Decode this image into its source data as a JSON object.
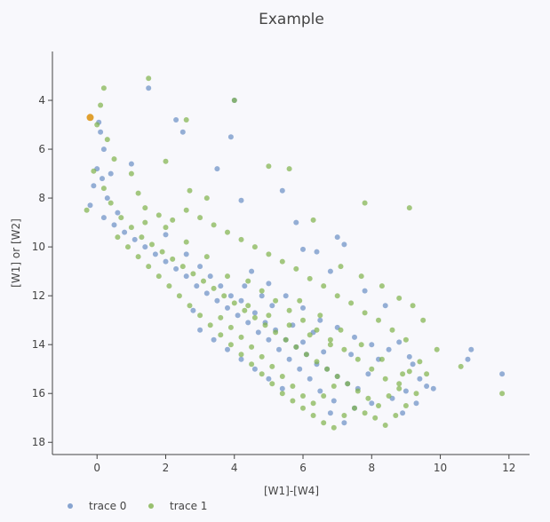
{
  "chart_data": {
    "type": "scatter",
    "title": "Example",
    "xlabel": "[W1]-[W4]",
    "ylabel": "[W1] or [W2]",
    "xlim": [
      -1.3,
      12.6
    ],
    "ylim": [
      18.5,
      2.0
    ],
    "y_reversed": true,
    "x_ticks": [
      0,
      2,
      4,
      6,
      8,
      10,
      12
    ],
    "y_ticks": [
      4,
      6,
      8,
      10,
      12,
      14,
      16,
      18
    ],
    "grid": false,
    "legend_position": "bottom-left",
    "series": [
      {
        "name": "trace 0",
        "color": "#6a8fc4",
        "points": [
          [
            0.05,
            4.9
          ],
          [
            0.1,
            5.3
          ],
          [
            0.2,
            6.0
          ],
          [
            0.0,
            6.8
          ],
          [
            -0.1,
            7.5
          ],
          [
            0.15,
            7.2
          ],
          [
            0.4,
            7.0
          ],
          [
            0.3,
            8.0
          ],
          [
            -0.2,
            8.3
          ],
          [
            0.6,
            8.6
          ],
          [
            1.0,
            6.6
          ],
          [
            1.5,
            3.5
          ],
          [
            2.3,
            4.8
          ],
          [
            2.5,
            5.3
          ],
          [
            3.9,
            5.5
          ],
          [
            4.0,
            4.0
          ],
          [
            3.5,
            6.8
          ],
          [
            4.2,
            8.1
          ],
          [
            5.4,
            7.7
          ],
          [
            5.8,
            9.0
          ],
          [
            6.0,
            10.1
          ],
          [
            7.0,
            9.6
          ],
          [
            7.2,
            9.9
          ],
          [
            6.4,
            10.2
          ],
          [
            2.0,
            9.5
          ],
          [
            2.6,
            10.3
          ],
          [
            3.0,
            10.8
          ],
          [
            3.3,
            11.2
          ],
          [
            3.6,
            11.6
          ],
          [
            3.9,
            12.0
          ],
          [
            4.2,
            12.2
          ],
          [
            4.6,
            12.7
          ],
          [
            4.9,
            13.1
          ],
          [
            5.2,
            13.4
          ],
          [
            5.5,
            13.8
          ],
          [
            5.8,
            14.1
          ],
          [
            6.1,
            14.4
          ],
          [
            6.4,
            14.8
          ],
          [
            6.7,
            15.0
          ],
          [
            7.0,
            15.3
          ],
          [
            7.3,
            15.6
          ],
          [
            7.6,
            15.8
          ],
          [
            7.9,
            15.2
          ],
          [
            8.2,
            14.6
          ],
          [
            8.5,
            14.2
          ],
          [
            8.8,
            13.9
          ],
          [
            9.1,
            14.5
          ],
          [
            9.4,
            15.4
          ],
          [
            9.0,
            15.9
          ],
          [
            8.6,
            16.2
          ],
          [
            8.0,
            16.4
          ],
          [
            7.5,
            16.6
          ],
          [
            6.9,
            16.3
          ],
          [
            6.5,
            15.9
          ],
          [
            6.2,
            15.4
          ],
          [
            5.9,
            15.0
          ],
          [
            5.6,
            14.6
          ],
          [
            5.3,
            14.2
          ],
          [
            5.0,
            13.8
          ],
          [
            4.7,
            13.5
          ],
          [
            4.4,
            13.1
          ],
          [
            4.1,
            12.8
          ],
          [
            3.8,
            12.5
          ],
          [
            3.5,
            12.2
          ],
          [
            3.2,
            11.9
          ],
          [
            2.9,
            11.6
          ],
          [
            2.6,
            11.2
          ],
          [
            2.3,
            10.9
          ],
          [
            2.0,
            10.6
          ],
          [
            1.7,
            10.3
          ],
          [
            1.4,
            10.0
          ],
          [
            1.1,
            9.7
          ],
          [
            0.8,
            9.4
          ],
          [
            0.5,
            9.1
          ],
          [
            0.2,
            8.8
          ],
          [
            4.5,
            11.0
          ],
          [
            5.0,
            11.5
          ],
          [
            5.5,
            12.0
          ],
          [
            6.0,
            12.5
          ],
          [
            6.5,
            13.0
          ],
          [
            7.0,
            13.3
          ],
          [
            7.5,
            13.7
          ],
          [
            8.0,
            14.0
          ],
          [
            8.4,
            12.4
          ],
          [
            7.8,
            11.8
          ],
          [
            6.8,
            11.0
          ],
          [
            9.2,
            14.8
          ],
          [
            9.6,
            15.7
          ],
          [
            10.8,
            14.6
          ],
          [
            10.9,
            14.2
          ],
          [
            11.8,
            15.2
          ],
          [
            9.8,
            15.8
          ],
          [
            9.3,
            16.4
          ],
          [
            8.9,
            16.8
          ],
          [
            7.2,
            17.2
          ],
          [
            6.8,
            16.8
          ],
          [
            3.0,
            13.4
          ],
          [
            3.4,
            13.8
          ],
          [
            3.8,
            14.2
          ],
          [
            4.2,
            14.6
          ],
          [
            4.6,
            15.0
          ],
          [
            5.0,
            15.4
          ],
          [
            5.4,
            15.8
          ],
          [
            2.8,
            12.6
          ],
          [
            6.3,
            13.5
          ],
          [
            6.0,
            13.9
          ],
          [
            5.7,
            13.2
          ],
          [
            5.1,
            12.4
          ],
          [
            4.8,
            12.0
          ],
          [
            4.3,
            11.6
          ],
          [
            6.6,
            14.3
          ],
          [
            7.4,
            14.4
          ]
        ]
      },
      {
        "name": "trace 1",
        "color": "#7fb24a",
        "points": [
          [
            0.2,
            3.5
          ],
          [
            1.5,
            3.1
          ],
          [
            4.0,
            4.0
          ],
          [
            2.6,
            4.8
          ],
          [
            0.1,
            4.2
          ],
          [
            0.0,
            5.0
          ],
          [
            0.3,
            5.6
          ],
          [
            0.5,
            6.4
          ],
          [
            -0.1,
            6.9
          ],
          [
            0.2,
            7.6
          ],
          [
            0.4,
            8.2
          ],
          [
            -0.3,
            8.5
          ],
          [
            0.7,
            8.8
          ],
          [
            1.0,
            7.0
          ],
          [
            1.2,
            7.8
          ],
          [
            2.0,
            6.5
          ],
          [
            2.7,
            7.7
          ],
          [
            3.2,
            8.0
          ],
          [
            5.6,
            6.8
          ],
          [
            5.0,
            6.7
          ],
          [
            6.3,
            8.9
          ],
          [
            7.8,
            8.2
          ],
          [
            9.1,
            8.4
          ],
          [
            1.0,
            9.2
          ],
          [
            1.3,
            9.6
          ],
          [
            1.6,
            9.9
          ],
          [
            1.9,
            10.2
          ],
          [
            2.2,
            10.5
          ],
          [
            2.5,
            10.8
          ],
          [
            2.8,
            11.1
          ],
          [
            3.1,
            11.4
          ],
          [
            3.4,
            11.7
          ],
          [
            3.7,
            12.0
          ],
          [
            4.0,
            12.3
          ],
          [
            4.3,
            12.6
          ],
          [
            4.6,
            12.9
          ],
          [
            4.9,
            13.2
          ],
          [
            5.2,
            13.5
          ],
          [
            5.5,
            13.8
          ],
          [
            5.8,
            14.1
          ],
          [
            6.1,
            14.4
          ],
          [
            6.4,
            14.7
          ],
          [
            6.7,
            15.0
          ],
          [
            7.0,
            15.3
          ],
          [
            7.3,
            15.6
          ],
          [
            7.6,
            15.9
          ],
          [
            7.9,
            16.2
          ],
          [
            8.2,
            16.5
          ],
          [
            8.5,
            16.1
          ],
          [
            8.8,
            15.6
          ],
          [
            9.1,
            15.1
          ],
          [
            9.4,
            14.7
          ],
          [
            9.0,
            13.8
          ],
          [
            8.6,
            13.4
          ],
          [
            8.2,
            13.0
          ],
          [
            7.8,
            12.7
          ],
          [
            7.4,
            12.3
          ],
          [
            7.0,
            12.0
          ],
          [
            6.6,
            11.6
          ],
          [
            6.2,
            11.3
          ],
          [
            5.8,
            10.9
          ],
          [
            5.4,
            10.6
          ],
          [
            5.0,
            10.3
          ],
          [
            4.6,
            10.0
          ],
          [
            4.2,
            9.7
          ],
          [
            3.8,
            9.4
          ],
          [
            3.4,
            9.1
          ],
          [
            3.0,
            8.8
          ],
          [
            2.6,
            8.5
          ],
          [
            2.2,
            8.9
          ],
          [
            1.8,
            8.7
          ],
          [
            1.4,
            8.4
          ],
          [
            0.6,
            9.6
          ],
          [
            0.9,
            10.0
          ],
          [
            1.2,
            10.4
          ],
          [
            1.5,
            10.8
          ],
          [
            1.8,
            11.2
          ],
          [
            2.1,
            11.6
          ],
          [
            2.4,
            12.0
          ],
          [
            2.7,
            12.4
          ],
          [
            3.0,
            12.8
          ],
          [
            3.3,
            13.2
          ],
          [
            3.6,
            13.6
          ],
          [
            3.9,
            14.0
          ],
          [
            4.2,
            14.4
          ],
          [
            4.5,
            14.8
          ],
          [
            4.8,
            15.2
          ],
          [
            5.1,
            15.6
          ],
          [
            5.4,
            16.0
          ],
          [
            5.7,
            16.3
          ],
          [
            6.0,
            16.6
          ],
          [
            6.3,
            16.9
          ],
          [
            6.6,
            17.2
          ],
          [
            6.9,
            17.4
          ],
          [
            7.2,
            16.9
          ],
          [
            7.5,
            16.6
          ],
          [
            7.8,
            16.8
          ],
          [
            8.1,
            17.0
          ],
          [
            8.4,
            17.3
          ],
          [
            8.7,
            16.9
          ],
          [
            9.0,
            16.5
          ],
          [
            9.3,
            16.0
          ],
          [
            9.6,
            15.2
          ],
          [
            9.9,
            14.2
          ],
          [
            10.6,
            14.9
          ],
          [
            11.8,
            16.0
          ],
          [
            9.5,
            13.0
          ],
          [
            9.2,
            12.4
          ],
          [
            8.8,
            12.1
          ],
          [
            8.3,
            11.6
          ],
          [
            7.7,
            11.2
          ],
          [
            7.1,
            10.8
          ],
          [
            5.9,
            12.2
          ],
          [
            6.5,
            12.8
          ],
          [
            7.1,
            13.4
          ],
          [
            7.7,
            14.0
          ],
          [
            8.3,
            14.6
          ],
          [
            8.9,
            15.2
          ],
          [
            6.8,
            14.0
          ],
          [
            6.2,
            13.6
          ],
          [
            5.6,
            13.2
          ],
          [
            5.0,
            12.8
          ],
          [
            4.4,
            12.4
          ],
          [
            3.8,
            11.2
          ],
          [
            3.2,
            10.4
          ],
          [
            2.6,
            9.8
          ],
          [
            2.0,
            9.2
          ],
          [
            1.4,
            9.0
          ],
          [
            4.4,
            11.4
          ],
          [
            4.8,
            11.8
          ],
          [
            5.2,
            12.2
          ],
          [
            5.6,
            12.6
          ],
          [
            6.0,
            13.0
          ],
          [
            6.4,
            13.4
          ],
          [
            6.8,
            13.8
          ],
          [
            7.2,
            14.2
          ],
          [
            7.6,
            14.6
          ],
          [
            8.0,
            15.0
          ],
          [
            8.4,
            15.4
          ],
          [
            8.8,
            15.8
          ],
          [
            3.6,
            12.9
          ],
          [
            3.9,
            13.3
          ],
          [
            4.2,
            13.7
          ],
          [
            4.5,
            14.1
          ],
          [
            4.8,
            14.5
          ],
          [
            5.1,
            14.9
          ],
          [
            5.4,
            15.3
          ],
          [
            5.7,
            15.7
          ],
          [
            6.0,
            16.1
          ],
          [
            6.3,
            16.4
          ],
          [
            6.6,
            16.1
          ],
          [
            6.9,
            15.7
          ]
        ]
      },
      {
        "name": "",
        "color": "#e0a030",
        "points": [
          [
            -0.2,
            4.7
          ]
        ]
      }
    ]
  }
}
